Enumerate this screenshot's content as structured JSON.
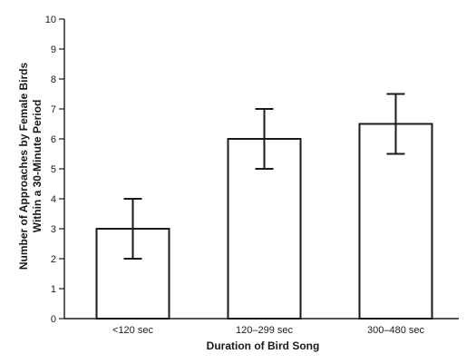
{
  "chart_data": {
    "type": "bar",
    "categories": [
      "<120 sec",
      "120–299 sec",
      "300–480 sec"
    ],
    "values": [
      3,
      6,
      6.5
    ],
    "error": {
      "lower": [
        2,
        5,
        5.5
      ],
      "upper": [
        4,
        7,
        7.5
      ]
    },
    "xlabel": "Duration of Bird Song",
    "ylabel_lines": [
      "Number of Approaches by Female Birds",
      "Within a 30-Minute Period"
    ],
    "ylim": [
      0,
      10
    ],
    "yticks": [
      0,
      1,
      2,
      3,
      4,
      5,
      6,
      7,
      8,
      9,
      10
    ],
    "grid": false,
    "colors": {
      "bar_fill": "#ffffff",
      "bar_stroke": "#1a1a1a",
      "axis": "#1a1a1a"
    }
  }
}
